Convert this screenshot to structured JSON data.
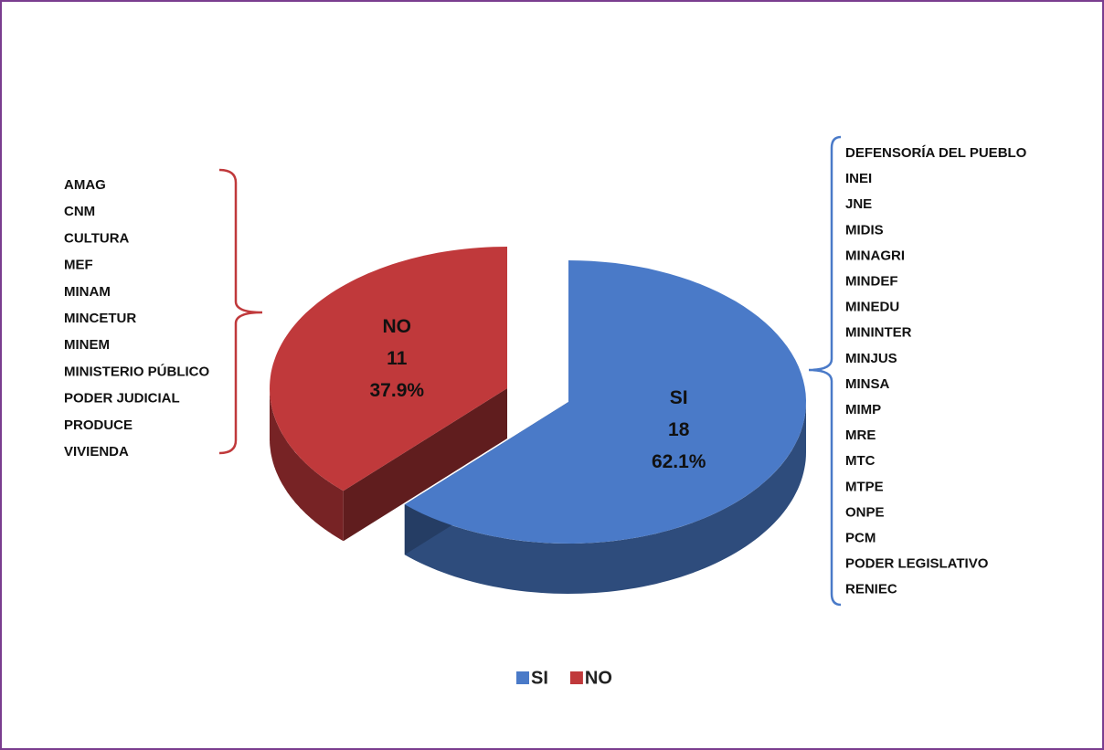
{
  "chart_data": {
    "type": "pie",
    "categories": [
      "SI",
      "NO"
    ],
    "values": [
      62.1,
      37.9
    ],
    "value_labels": [
      "62.1%",
      "37.9%"
    ],
    "counts": [
      18,
      11
    ],
    "colors": [
      "#4a7ac8",
      "#c0393b"
    ],
    "legend": "bottom",
    "institutions": [
      [
        "DEFENSORÍA DEL PUEBLO",
        "INEI",
        "JNE",
        "MIDIS",
        "MINAGRI",
        "MINDEF",
        "MINEDU",
        "MININTER",
        "MINJUS",
        "MINSA",
        "MIMP",
        "MRE",
        "MTC",
        "MTPE",
        "ONPE",
        "PCM",
        "PODER LEGISLATIVO",
        "RENIEC"
      ],
      [
        "AMAG",
        "CNM",
        "CULTURA",
        "MEF",
        "MINAM",
        "MINCETUR",
        "MINEM",
        "MINISTERIO PÚBLICO",
        "PODER JUDICIAL",
        "PRODUCE",
        "VIVIENDA"
      ]
    ]
  }
}
